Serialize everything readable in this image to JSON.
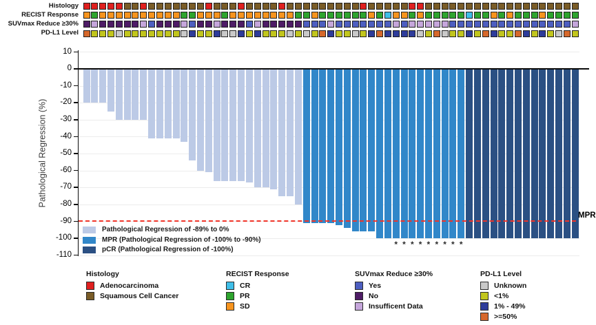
{
  "annotation_tracks": {
    "rows": [
      {
        "label": "Histology",
        "map": {
          "R": "#E0201F",
          "B": "#7A5C27"
        },
        "cells": "RRRRRBBRBBBBBBBRBBBRBBBBRBBBBBBBBBRBBBBBRRBBBBBBBBBBBBBBBBBBB"
      },
      {
        "label": "RECIST Response",
        "map": {
          "O": "#F7941E",
          "G": "#2EA42E",
          "C": "#3FBEE8"
        },
        "cells": "OGOOOOOOOOOOGGOOOGOOOOOOOOGGOGGGGGGOGCOOGOGGGGGCGGOGOGGGOGGGG"
      },
      {
        "label": "SUVmax Reduce ≥30%",
        "map": {
          "Y": "#4D5EC0",
          "N": "#4E1C66",
          "I": "#C5A6DB"
        },
        "cells": "NINNNNNIYNNNIYNNINNNYINNNNNYYYIYYYYYYYIYIIIIIYYYYYYYYYYYYYYYI"
      },
      {
        "label": "PD-L1 Level",
        "map": {
          "U": "#C9C9C9",
          "L": "#C2C61D",
          "M": "#2E3C9A",
          "H": "#D6682B"
        },
        "cells": "HLLLULLLLLLLUMLLMUUMLMLLLULULHMLLULMHMMMMULHULLMLHMLLHMLMLUHL"
      }
    ]
  },
  "chart_data": {
    "type": "bar",
    "title": "",
    "ylabel": "Pathological Regression (%)",
    "ylim": [
      -110,
      10
    ],
    "yticks": [
      10,
      0,
      -10,
      -20,
      -30,
      -40,
      -50,
      -60,
      -70,
      -80,
      -90,
      -100,
      -110
    ],
    "grid": "horizontal-light",
    "values": [
      -20,
      -20,
      -20,
      -25,
      -30,
      -30,
      -30,
      -30,
      -41,
      -41,
      -41,
      -41,
      -43,
      -54,
      -60,
      -61,
      -66,
      -66,
      -66,
      -66,
      -67,
      -70,
      -70,
      -71,
      -75,
      -75,
      -80,
      -91,
      -91,
      -91,
      -91,
      -92,
      -94,
      -96,
      -96,
      -96,
      -100,
      -100,
      -100,
      -100,
      -100,
      -100,
      -100,
      -100,
      -100,
      -100,
      -100,
      -100,
      -100,
      -100,
      -100,
      -100,
      -100,
      -100,
      -100,
      -100,
      -100,
      -100,
      -100,
      -100,
      -100
    ],
    "groups": "LLLLLLLLLLLLLLLLLLLLLLLLLLLMMMMMMMMMMMMMMMMMMMMPPPPPPPPPPPPPP",
    "group_defs": [
      {
        "key": "L",
        "label": "Pathological Regression of -89% to 0%",
        "color": "#BCCAE6"
      },
      {
        "key": "M",
        "label": "MPR (Pathological Regression of -100% to -90%)",
        "color": "#3187C9"
      },
      {
        "key": "P",
        "label": "pCR (Pathological Regression of -100%)",
        "color": "#2B5083"
      }
    ],
    "asterisk_columns": [
      39,
      40,
      41,
      42,
      43,
      44,
      45,
      46,
      47
    ],
    "reference_line": {
      "y": -90,
      "label": "MPR",
      "color": "#F03428",
      "style": "dashed"
    }
  },
  "category_legends": [
    {
      "title": "Histology",
      "items": [
        {
          "label": "Adenocarcinoma",
          "color": "#E0201F"
        },
        {
          "label": "Squamous Cell Cancer",
          "color": "#7A5C27"
        }
      ]
    },
    {
      "title": "RECIST Response",
      "items": [
        {
          "label": "CR",
          "color": "#3FBEE8"
        },
        {
          "label": "PR",
          "color": "#2EA42E"
        },
        {
          "label": "SD",
          "color": "#F7941E"
        }
      ]
    },
    {
      "title": "SUVmax Reduce ≥30%",
      "items": [
        {
          "label": "Yes",
          "color": "#4D5EC0"
        },
        {
          "label": "No",
          "color": "#4E1C66"
        },
        {
          "label": "Insufficent Data",
          "color": "#C5A6DB"
        }
      ]
    },
    {
      "title": "PD-L1 Level",
      "items": [
        {
          "label": "Unknown",
          "color": "#C9C9C9"
        },
        {
          "label": "<1%",
          "color": "#C2C61D"
        },
        {
          "label": "1% - 49%",
          "color": "#2E3C9A"
        },
        {
          "label": ">=50%",
          "color": "#D6682B"
        }
      ]
    }
  ]
}
